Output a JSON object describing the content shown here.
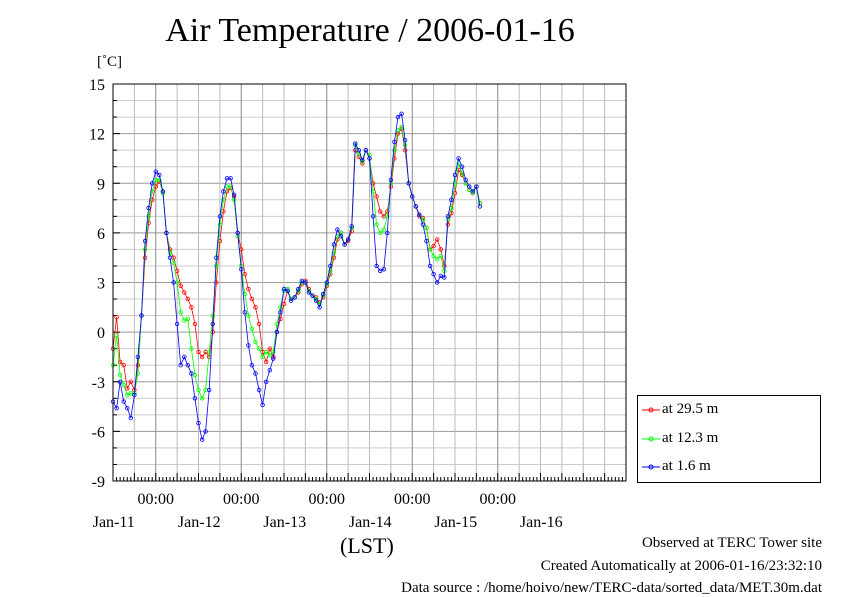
{
  "chart_data": {
    "type": "line",
    "title": "Air Temperature / 2006-01-16",
    "ylabel": "[˚C]",
    "xlabel": "(LST)",
    "ylim": [
      -9,
      15
    ],
    "yticks": [
      15,
      12,
      9,
      6,
      3,
      0,
      -3,
      -6,
      -9
    ],
    "xlim": [
      0,
      144
    ],
    "x_unit": "hours since 2006-01-10 12:00 LST",
    "x_midnight_labels": [
      "00:00",
      "00:00",
      "00:00",
      "00:00",
      "00:00"
    ],
    "x_midnight_hours": [
      12,
      36,
      60,
      84,
      108
    ],
    "x_date_labels": [
      "Jan-11",
      "Jan-12",
      "Jan-13",
      "Jan-14",
      "Jan-15",
      "Jan-16"
    ],
    "x_date_hours": [
      12,
      36,
      60,
      84,
      108,
      132
    ],
    "grid": true,
    "legend_position": "right",
    "series": [
      {
        "name": "at 29.5 m",
        "color": "#ff0000",
        "points": [
          [
            0,
            -1.0
          ],
          [
            1,
            0.9
          ],
          [
            2,
            -1.8
          ],
          [
            3,
            -2.0
          ],
          [
            4,
            -3.4
          ],
          [
            5,
            -3.0
          ],
          [
            6,
            -3.5
          ],
          [
            7,
            -2.0
          ],
          [
            8,
            1.0
          ],
          [
            9,
            4.5
          ],
          [
            10,
            6.6
          ],
          [
            11,
            8.0
          ],
          [
            12,
            8.8
          ],
          [
            13,
            9.1
          ],
          [
            14,
            8.5
          ],
          [
            15,
            6.0
          ],
          [
            16,
            5.0
          ],
          [
            17,
            4.5
          ],
          [
            18,
            3.7
          ],
          [
            19,
            2.8
          ],
          [
            20,
            2.4
          ],
          [
            21,
            2.0
          ],
          [
            22,
            1.5
          ],
          [
            23,
            0.5
          ],
          [
            24,
            -1.2
          ],
          [
            25,
            -1.5
          ],
          [
            26,
            -1.2
          ],
          [
            27,
            -1.5
          ],
          [
            28,
            0.0
          ],
          [
            29,
            3.0
          ],
          [
            30,
            5.5
          ],
          [
            31,
            7.3
          ],
          [
            32,
            8.5
          ],
          [
            33,
            8.7
          ],
          [
            34,
            8.2
          ],
          [
            35,
            6.0
          ],
          [
            36,
            5.0
          ],
          [
            37,
            3.5
          ],
          [
            38,
            2.6
          ],
          [
            39,
            2.0
          ],
          [
            40,
            1.5
          ],
          [
            41,
            0.5
          ],
          [
            42,
            -1.2
          ],
          [
            43,
            -1.8
          ],
          [
            44,
            -1.0
          ],
          [
            45,
            -1.5
          ],
          [
            46,
            0.0
          ],
          [
            47,
            0.8
          ],
          [
            48,
            1.7
          ],
          [
            49,
            2.5
          ],
          [
            50,
            2.0
          ],
          [
            51,
            2.1
          ],
          [
            52,
            2.4
          ],
          [
            53,
            2.9
          ],
          [
            54,
            3.1
          ],
          [
            55,
            2.6
          ],
          [
            56,
            2.2
          ],
          [
            57,
            2.1
          ],
          [
            58,
            1.8
          ],
          [
            59,
            2.1
          ],
          [
            60,
            2.8
          ],
          [
            61,
            3.5
          ],
          [
            62,
            4.5
          ],
          [
            63,
            5.6
          ],
          [
            64,
            6.0
          ],
          [
            65,
            5.3
          ],
          [
            66,
            5.5
          ],
          [
            67,
            6.1
          ],
          [
            68,
            11.0
          ],
          [
            69,
            10.6
          ],
          [
            70,
            10.2
          ],
          [
            71,
            11.0
          ],
          [
            72,
            10.5
          ],
          [
            73,
            9.0
          ],
          [
            74,
            8.2
          ],
          [
            75,
            7.3
          ],
          [
            76,
            7.0
          ],
          [
            77,
            7.3
          ],
          [
            78,
            8.8
          ],
          [
            79,
            10.5
          ],
          [
            80,
            12.0
          ],
          [
            81,
            12.3
          ],
          [
            82,
            11.0
          ],
          [
            83,
            9.0
          ],
          [
            84,
            8.2
          ],
          [
            85,
            7.6
          ],
          [
            86,
            7.0
          ],
          [
            87,
            6.9
          ],
          [
            88,
            6.3
          ],
          [
            89,
            5.0
          ],
          [
            90,
            5.2
          ],
          [
            91,
            5.6
          ],
          [
            92,
            5.0
          ],
          [
            93,
            4.0
          ],
          [
            94,
            6.5
          ],
          [
            95,
            7.2
          ],
          [
            96,
            8.4
          ],
          [
            97,
            9.8
          ],
          [
            98,
            9.5
          ],
          [
            99,
            9.0
          ],
          [
            100,
            8.6
          ],
          [
            101,
            8.4
          ],
          [
            102,
            8.8
          ],
          [
            103,
            7.8
          ]
        ]
      },
      {
        "name": "at 12.3 m",
        "color": "#00ff00",
        "points": [
          [
            0,
            -2.0
          ],
          [
            1,
            -0.2
          ],
          [
            2,
            -2.6
          ],
          [
            3,
            -3.2
          ],
          [
            4,
            -3.8
          ],
          [
            5,
            -3.7
          ],
          [
            6,
            -3.7
          ],
          [
            7,
            -2.5
          ],
          [
            8,
            1.0
          ],
          [
            9,
            5.0
          ],
          [
            10,
            7.0
          ],
          [
            11,
            8.5
          ],
          [
            12,
            9.2
          ],
          [
            13,
            9.2
          ],
          [
            14,
            8.4
          ],
          [
            15,
            6.0
          ],
          [
            16,
            4.8
          ],
          [
            17,
            4.2
          ],
          [
            18,
            3.0
          ],
          [
            19,
            1.2
          ],
          [
            20,
            0.7
          ],
          [
            21,
            0.8
          ],
          [
            22,
            -1.0
          ],
          [
            23,
            -2.6
          ],
          [
            24,
            -3.5
          ],
          [
            25,
            -4.0
          ],
          [
            26,
            -3.5
          ],
          [
            27,
            -1.2
          ],
          [
            28,
            1.0
          ],
          [
            29,
            4.0
          ],
          [
            30,
            6.5
          ],
          [
            31,
            8.0
          ],
          [
            32,
            8.8
          ],
          [
            33,
            8.8
          ],
          [
            34,
            8.0
          ],
          [
            35,
            5.8
          ],
          [
            36,
            4.0
          ],
          [
            37,
            2.3
          ],
          [
            38,
            1.0
          ],
          [
            39,
            0.2
          ],
          [
            40,
            -0.6
          ],
          [
            41,
            -1.0
          ],
          [
            42,
            -1.5
          ],
          [
            43,
            -1.2
          ],
          [
            44,
            -1.4
          ],
          [
            45,
            -1.2
          ],
          [
            46,
            0.5
          ],
          [
            47,
            1.5
          ],
          [
            48,
            2.5
          ],
          [
            49,
            2.6
          ],
          [
            50,
            2.0
          ],
          [
            51,
            2.1
          ],
          [
            52,
            2.5
          ],
          [
            53,
            3.0
          ],
          [
            54,
            3.0
          ],
          [
            55,
            2.5
          ],
          [
            56,
            2.2
          ],
          [
            57,
            2.0
          ],
          [
            58,
            1.7
          ],
          [
            59,
            2.2
          ],
          [
            60,
            2.9
          ],
          [
            61,
            3.7
          ],
          [
            62,
            4.8
          ],
          [
            63,
            5.8
          ],
          [
            64,
            6.0
          ],
          [
            65,
            5.3
          ],
          [
            66,
            5.6
          ],
          [
            67,
            6.3
          ],
          [
            68,
            11.3
          ],
          [
            69,
            10.8
          ],
          [
            70,
            10.3
          ],
          [
            71,
            11.0
          ],
          [
            72,
            10.7
          ],
          [
            73,
            8.5
          ],
          [
            74,
            6.5
          ],
          [
            75,
            6.0
          ],
          [
            76,
            6.2
          ],
          [
            77,
            7.0
          ],
          [
            78,
            9.0
          ],
          [
            79,
            11.0
          ],
          [
            80,
            12.2
          ],
          [
            81,
            12.4
          ],
          [
            82,
            11.3
          ],
          [
            83,
            9.0
          ],
          [
            84,
            8.2
          ],
          [
            85,
            7.6
          ],
          [
            86,
            7.1
          ],
          [
            87,
            6.8
          ],
          [
            88,
            6.3
          ],
          [
            89,
            5.0
          ],
          [
            90,
            4.6
          ],
          [
            91,
            4.4
          ],
          [
            92,
            4.6
          ],
          [
            93,
            3.7
          ],
          [
            94,
            6.8
          ],
          [
            95,
            7.5
          ],
          [
            96,
            9.0
          ],
          [
            97,
            10.2
          ],
          [
            98,
            9.6
          ],
          [
            99,
            9.0
          ],
          [
            100,
            8.6
          ],
          [
            101,
            8.4
          ],
          [
            102,
            8.8
          ],
          [
            103,
            7.8
          ]
        ]
      },
      {
        "name": "at 1.6 m",
        "color": "#0000ff",
        "points": [
          [
            0,
            -4.2
          ],
          [
            1,
            -4.6
          ],
          [
            2,
            -3.0
          ],
          [
            3,
            -4.2
          ],
          [
            4,
            -4.6
          ],
          [
            5,
            -5.2
          ],
          [
            6,
            -3.8
          ],
          [
            7,
            -1.5
          ],
          [
            8,
            1.0
          ],
          [
            9,
            5.5
          ],
          [
            10,
            7.5
          ],
          [
            11,
            9.0
          ],
          [
            12,
            9.7
          ],
          [
            13,
            9.5
          ],
          [
            14,
            8.5
          ],
          [
            15,
            6.0
          ],
          [
            16,
            4.5
          ],
          [
            17,
            3.0
          ],
          [
            18,
            0.5
          ],
          [
            19,
            -2.0
          ],
          [
            20,
            -1.5
          ],
          [
            21,
            -2.0
          ],
          [
            22,
            -2.5
          ],
          [
            23,
            -4.0
          ],
          [
            24,
            -5.5
          ],
          [
            25,
            -6.5
          ],
          [
            26,
            -6.0
          ],
          [
            27,
            -3.5
          ],
          [
            28,
            0.5
          ],
          [
            29,
            4.5
          ],
          [
            30,
            7.0
          ],
          [
            31,
            8.5
          ],
          [
            32,
            9.3
          ],
          [
            33,
            9.3
          ],
          [
            34,
            8.3
          ],
          [
            35,
            6.0
          ],
          [
            36,
            3.8
          ],
          [
            37,
            1.2
          ],
          [
            38,
            -0.8
          ],
          [
            39,
            -2.0
          ],
          [
            40,
            -2.5
          ],
          [
            41,
            -3.5
          ],
          [
            42,
            -4.4
          ],
          [
            43,
            -3.0
          ],
          [
            44,
            -2.3
          ],
          [
            45,
            -1.6
          ],
          [
            46,
            0.0
          ],
          [
            47,
            1.2
          ],
          [
            48,
            2.6
          ],
          [
            49,
            2.5
          ],
          [
            50,
            1.9
          ],
          [
            51,
            2.1
          ],
          [
            52,
            2.6
          ],
          [
            53,
            3.1
          ],
          [
            54,
            3.0
          ],
          [
            55,
            2.4
          ],
          [
            56,
            2.2
          ],
          [
            57,
            1.9
          ],
          [
            58,
            1.5
          ],
          [
            59,
            2.3
          ],
          [
            60,
            3.0
          ],
          [
            61,
            4.0
          ],
          [
            62,
            5.3
          ],
          [
            63,
            6.2
          ],
          [
            64,
            5.8
          ],
          [
            65,
            5.3
          ],
          [
            66,
            5.6
          ],
          [
            67,
            6.4
          ],
          [
            68,
            11.4
          ],
          [
            69,
            11.0
          ],
          [
            70,
            10.4
          ],
          [
            71,
            11.0
          ],
          [
            72,
            10.5
          ],
          [
            73,
            7.0
          ],
          [
            74,
            4.0
          ],
          [
            75,
            3.7
          ],
          [
            76,
            3.8
          ],
          [
            77,
            6.0
          ],
          [
            78,
            9.2
          ],
          [
            79,
            11.5
          ],
          [
            80,
            13.0
          ],
          [
            81,
            13.2
          ],
          [
            82,
            11.6
          ],
          [
            83,
            9.0
          ],
          [
            84,
            8.2
          ],
          [
            85,
            7.6
          ],
          [
            86,
            7.1
          ],
          [
            87,
            6.5
          ],
          [
            88,
            5.5
          ],
          [
            89,
            4.0
          ],
          [
            90,
            3.5
          ],
          [
            91,
            3.0
          ],
          [
            92,
            3.4
          ],
          [
            93,
            3.3
          ],
          [
            94,
            7.0
          ],
          [
            95,
            8.0
          ],
          [
            96,
            9.5
          ],
          [
            97,
            10.5
          ],
          [
            98,
            10.0
          ],
          [
            99,
            9.2
          ],
          [
            100,
            8.8
          ],
          [
            101,
            8.5
          ],
          [
            102,
            8.8
          ],
          [
            103,
            7.6
          ]
        ]
      }
    ]
  },
  "footer": {
    "line1": "Observed at TERC Tower site",
    "line2": "Created Automatically at 2006-01-16/23:32:10",
    "line3": "Data source : /home/hoivo/new/TERC-data/sorted_data/MET.30m.dat"
  }
}
